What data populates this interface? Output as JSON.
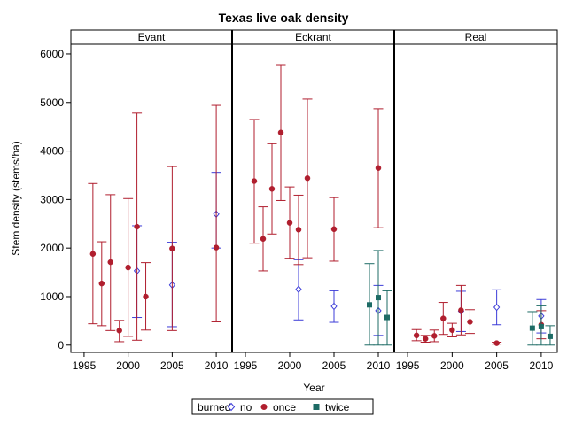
{
  "chart_data": {
    "type": "scatter",
    "title": "Texas live oak density",
    "xlabel": "Year",
    "ylabel": "Stem density (stems/ha)",
    "xlim": [
      1993.5,
      2011.8
    ],
    "ylim": [
      -150,
      6200
    ],
    "xticks": [
      1995,
      2000,
      2005,
      2010
    ],
    "yticks": [
      0,
      1000,
      2000,
      3000,
      4000,
      5000,
      6000
    ],
    "legend": {
      "title": "burned",
      "placement": "bottom-center",
      "entries": [
        {
          "name": "no",
          "marker": "diamond-open",
          "color": "#3c3cd8"
        },
        {
          "name": "once",
          "marker": "circle-filled",
          "color": "#b01e2e"
        },
        {
          "name": "twice",
          "marker": "square-filled",
          "color": "#1d6b65"
        }
      ]
    },
    "panels": [
      {
        "name": "Evant",
        "series": [
          {
            "name": "no",
            "points": [
              {
                "x": 2001,
                "y": 1530,
                "lo": 570,
                "hi": 2460
              },
              {
                "x": 2005,
                "y": 1240,
                "lo": 380,
                "hi": 2120
              },
              {
                "x": 2010,
                "y": 2700,
                "lo": 2000,
                "hi": 3560
              }
            ]
          },
          {
            "name": "once",
            "points": [
              {
                "x": 1996,
                "y": 1880,
                "lo": 440,
                "hi": 3330
              },
              {
                "x": 1997,
                "y": 1270,
                "lo": 400,
                "hi": 2130
              },
              {
                "x": 1998,
                "y": 1710,
                "lo": 300,
                "hi": 3100
              },
              {
                "x": 1999,
                "y": 300,
                "lo": 70,
                "hi": 510
              },
              {
                "x": 2000,
                "y": 1600,
                "lo": 180,
                "hi": 3020
              },
              {
                "x": 2001,
                "y": 2440,
                "lo": 100,
                "hi": 4780
              },
              {
                "x": 2002,
                "y": 1000,
                "lo": 310,
                "hi": 1700
              },
              {
                "x": 2005,
                "y": 1990,
                "lo": 300,
                "hi": 3680
              },
              {
                "x": 2010,
                "y": 2010,
                "lo": 480,
                "hi": 4940
              }
            ]
          },
          {
            "name": "twice",
            "points": []
          }
        ]
      },
      {
        "name": "Eckrant",
        "series": [
          {
            "name": "no",
            "points": [
              {
                "x": 2001,
                "y": 1150,
                "lo": 520,
                "hi": 1760
              },
              {
                "x": 2005,
                "y": 800,
                "lo": 470,
                "hi": 1120
              },
              {
                "x": 2010,
                "y": 710,
                "lo": 200,
                "hi": 1230
              }
            ]
          },
          {
            "name": "once",
            "points": [
              {
                "x": 1996,
                "y": 3380,
                "lo": 2100,
                "hi": 4650
              },
              {
                "x": 1997,
                "y": 2190,
                "lo": 1530,
                "hi": 2850
              },
              {
                "x": 1998,
                "y": 3220,
                "lo": 2290,
                "hi": 4150
              },
              {
                "x": 1999,
                "y": 4380,
                "lo": 2980,
                "hi": 5780
              },
              {
                "x": 2000,
                "y": 2520,
                "lo": 1790,
                "hi": 3260
              },
              {
                "x": 2001,
                "y": 2380,
                "lo": 1660,
                "hi": 3090
              },
              {
                "x": 2002,
                "y": 3440,
                "lo": 1800,
                "hi": 5070
              },
              {
                "x": 2005,
                "y": 2390,
                "lo": 1730,
                "hi": 3040
              },
              {
                "x": 2010,
                "y": 3650,
                "lo": 2420,
                "hi": 4870
              }
            ]
          },
          {
            "name": "twice",
            "points": [
              {
                "x": 2009,
                "y": 830,
                "lo": 0,
                "hi": 1680
              },
              {
                "x": 2010,
                "y": 980,
                "lo": 0,
                "hi": 1950
              },
              {
                "x": 2011,
                "y": 570,
                "lo": 0,
                "hi": 1120
              }
            ]
          }
        ]
      },
      {
        "name": "Real",
        "series": [
          {
            "name": "no",
            "points": [
              {
                "x": 2001,
                "y": 700,
                "lo": 280,
                "hi": 1110
              },
              {
                "x": 2005,
                "y": 780,
                "lo": 420,
                "hi": 1140
              },
              {
                "x": 2010,
                "y": 600,
                "lo": 250,
                "hi": 940
              }
            ]
          },
          {
            "name": "once",
            "points": [
              {
                "x": 1996,
                "y": 200,
                "lo": 90,
                "hi": 320
              },
              {
                "x": 1997,
                "y": 130,
                "lo": 60,
                "hi": 200
              },
              {
                "x": 1998,
                "y": 190,
                "lo": 70,
                "hi": 310
              },
              {
                "x": 1999,
                "y": 550,
                "lo": 220,
                "hi": 880
              },
              {
                "x": 2000,
                "y": 310,
                "lo": 170,
                "hi": 450
              },
              {
                "x": 2001,
                "y": 720,
                "lo": 210,
                "hi": 1230
              },
              {
                "x": 2002,
                "y": 480,
                "lo": 240,
                "hi": 730
              },
              {
                "x": 2005,
                "y": 40,
                "lo": 20,
                "hi": 60
              },
              {
                "x": 2010,
                "y": 420,
                "lo": 130,
                "hi": 710
              }
            ]
          },
          {
            "name": "twice",
            "points": [
              {
                "x": 2009,
                "y": 350,
                "lo": 0,
                "hi": 690
              },
              {
                "x": 2010,
                "y": 380,
                "lo": 0,
                "hi": 810
              },
              {
                "x": 2011,
                "y": 180,
                "lo": 0,
                "hi": 400
              }
            ]
          }
        ]
      }
    ]
  }
}
